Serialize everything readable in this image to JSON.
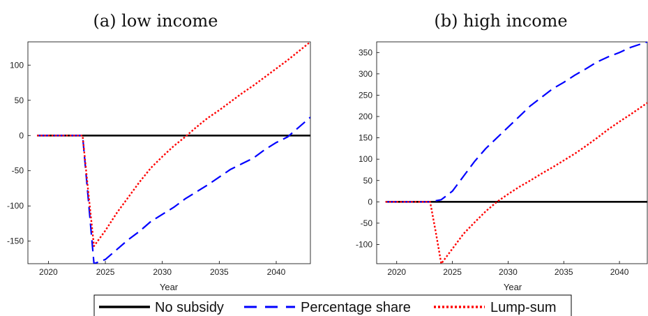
{
  "chart_data": [
    {
      "type": "line",
      "title": "(a) low income",
      "xlabel": "Year",
      "ylabel": "",
      "xlim": [
        2018.2,
        2043
      ],
      "ylim": [
        -182,
        133
      ],
      "xticks": [
        2020,
        2025,
        2030,
        2035,
        2040
      ],
      "yticks": [
        -150,
        -100,
        -50,
        0,
        50,
        100
      ],
      "grid": false,
      "series": [
        {
          "name": "No subsidy",
          "color": "#000000",
          "style": "solid",
          "points": [
            [
              2019,
              0
            ],
            [
              2043,
              0
            ]
          ]
        },
        {
          "name": "Percentage share",
          "color": "#0000ff",
          "style": "dashed",
          "points": [
            [
              2019,
              0
            ],
            [
              2023,
              0
            ],
            [
              2023.5,
              -90
            ],
            [
              2024,
              -182
            ],
            [
              2025,
              -176
            ],
            [
              2026,
              -162
            ],
            [
              2027,
              -148
            ],
            [
              2028,
              -136
            ],
            [
              2029,
              -122
            ],
            [
              2030,
              -112
            ],
            [
              2031,
              -102
            ],
            [
              2032,
              -90
            ],
            [
              2033,
              -80
            ],
            [
              2034,
              -70
            ],
            [
              2035,
              -59
            ],
            [
              2036,
              -48
            ],
            [
              2037,
              -40
            ],
            [
              2038,
              -32
            ],
            [
              2039,
              -20
            ],
            [
              2040,
              -10
            ],
            [
              2041,
              -2
            ],
            [
              2042,
              12
            ],
            [
              2043,
              26
            ]
          ]
        },
        {
          "name": "Lump-sum",
          "color": "#ff0000",
          "style": "dotted",
          "points": [
            [
              2019,
              0
            ],
            [
              2023,
              0
            ],
            [
              2023.5,
              -80
            ],
            [
              2024,
              -157
            ],
            [
              2025,
              -135
            ],
            [
              2026,
              -110
            ],
            [
              2027,
              -88
            ],
            [
              2028,
              -66
            ],
            [
              2029,
              -46
            ],
            [
              2030,
              -30
            ],
            [
              2031,
              -15
            ],
            [
              2032,
              -2
            ],
            [
              2033,
              12
            ],
            [
              2034,
              25
            ],
            [
              2035,
              36
            ],
            [
              2036,
              48
            ],
            [
              2037,
              60
            ],
            [
              2038,
              71
            ],
            [
              2039,
              83
            ],
            [
              2040,
              95
            ],
            [
              2041,
              107
            ],
            [
              2042,
              120
            ],
            [
              2043,
              133
            ]
          ]
        }
      ]
    },
    {
      "type": "line",
      "title": "(b) high income",
      "xlabel": "Year",
      "ylabel": "",
      "xlim": [
        2018.2,
        2042.5
      ],
      "ylim": [
        -145,
        375
      ],
      "xticks": [
        2020,
        2025,
        2030,
        2035,
        2040
      ],
      "yticks": [
        -100,
        -50,
        0,
        50,
        100,
        150,
        200,
        250,
        300,
        350
      ],
      "grid": false,
      "series": [
        {
          "name": "No subsidy",
          "color": "#000000",
          "style": "solid",
          "points": [
            [
              2019,
              0
            ],
            [
              2042.5,
              0
            ]
          ]
        },
        {
          "name": "Percentage share",
          "color": "#0000ff",
          "style": "dashed",
          "points": [
            [
              2019,
              0
            ],
            [
              2023,
              0
            ],
            [
              2024,
              5
            ],
            [
              2025,
              25
            ],
            [
              2026,
              60
            ],
            [
              2027,
              95
            ],
            [
              2028,
              125
            ],
            [
              2029,
              150
            ],
            [
              2030,
              175
            ],
            [
              2031,
              200
            ],
            [
              2032,
              225
            ],
            [
              2033,
              245
            ],
            [
              2034,
              265
            ],
            [
              2035,
              280
            ],
            [
              2036,
              297
            ],
            [
              2037,
              312
            ],
            [
              2038,
              328
            ],
            [
              2039,
              340
            ],
            [
              2040,
              350
            ],
            [
              2041,
              362
            ],
            [
              2042.5,
              375
            ]
          ]
        },
        {
          "name": "Lump-sum",
          "color": "#ff0000",
          "style": "dotted",
          "points": [
            [
              2019,
              0
            ],
            [
              2023,
              0
            ],
            [
              2023.5,
              -70
            ],
            [
              2024,
              -145
            ],
            [
              2025,
              -110
            ],
            [
              2026,
              -75
            ],
            [
              2027,
              -48
            ],
            [
              2028,
              -22
            ],
            [
              2029,
              0
            ],
            [
              2030,
              18
            ],
            [
              2031,
              35
            ],
            [
              2032,
              50
            ],
            [
              2033,
              66
            ],
            [
              2034,
              81
            ],
            [
              2035,
              97
            ],
            [
              2036,
              113
            ],
            [
              2037,
              131
            ],
            [
              2038,
              150
            ],
            [
              2039,
              170
            ],
            [
              2040,
              188
            ],
            [
              2041,
              205
            ],
            [
              2042.5,
              232
            ]
          ]
        }
      ]
    }
  ],
  "legend": {
    "placement": "bottom-center",
    "entries": [
      {
        "label": "No subsidy",
        "color": "#000000",
        "style": "solid"
      },
      {
        "label": "Percentage share",
        "color": "#0000ff",
        "style": "dashed"
      },
      {
        "label": "Lump-sum",
        "color": "#ff0000",
        "style": "dotted"
      }
    ]
  }
}
